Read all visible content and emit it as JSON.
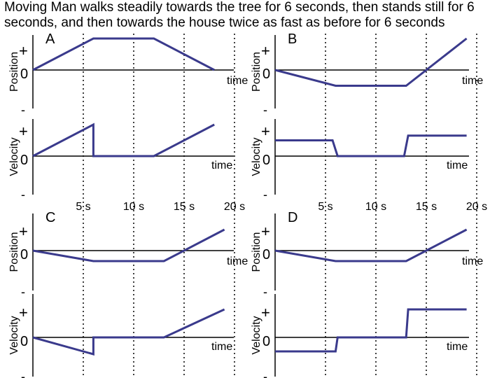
{
  "title": "Moving Man walks steadily towards the tree for 6 seconds, then stands still for 6 seconds, and then towards the house twice as fast as before for 6 seconds",
  "colors": {
    "trace": "#3a3a8c",
    "axis": "#000000",
    "background": "#ffffff"
  },
  "labels": {
    "plus": "+",
    "zero": "0",
    "minus": "-",
    "position": "Position",
    "velocity": "Velocity",
    "time": "time"
  },
  "time_ticks": [
    "5 s",
    "10 s",
    "15 s",
    "20 s"
  ],
  "chart_data": [
    {
      "type": "line",
      "panel": "A",
      "title": "A",
      "x_unit": "s",
      "position": {
        "x": [
          0,
          6,
          12,
          18
        ],
        "y": [
          0,
          1,
          1,
          0
        ]
      },
      "velocity": {
        "x": [
          0,
          6,
          6,
          12,
          12,
          18
        ],
        "y": [
          0,
          1,
          0,
          0,
          0,
          1
        ]
      }
    },
    {
      "type": "line",
      "panel": "B",
      "title": "B",
      "x_unit": "s",
      "position": {
        "x": [
          0,
          6,
          13,
          19
        ],
        "y": [
          0,
          -0.5,
          -0.5,
          1
        ]
      },
      "velocity": {
        "x": [
          0,
          5.7,
          6.2,
          12.8,
          13.2,
          19
        ],
        "y": [
          0.5,
          0.5,
          0,
          0,
          0.65,
          0.65
        ]
      }
    },
    {
      "type": "line",
      "panel": "C",
      "title": "C",
      "x_unit": "s",
      "position": {
        "x": [
          0,
          6,
          13,
          19
        ],
        "y": [
          0,
          -0.5,
          -0.5,
          1
        ]
      },
      "velocity": {
        "x": [
          0,
          6,
          6,
          13,
          19
        ],
        "y": [
          0,
          -0.6,
          0,
          0,
          1
        ]
      }
    },
    {
      "type": "line",
      "panel": "D",
      "title": "D",
      "x_unit": "s",
      "position": {
        "x": [
          0,
          6,
          13,
          19
        ],
        "y": [
          0,
          -0.5,
          -0.5,
          1
        ]
      },
      "velocity": {
        "x": [
          0,
          6,
          6.2,
          13,
          13.2,
          19
        ],
        "y": [
          -0.5,
          -0.5,
          0,
          0,
          1,
          1
        ]
      }
    }
  ]
}
